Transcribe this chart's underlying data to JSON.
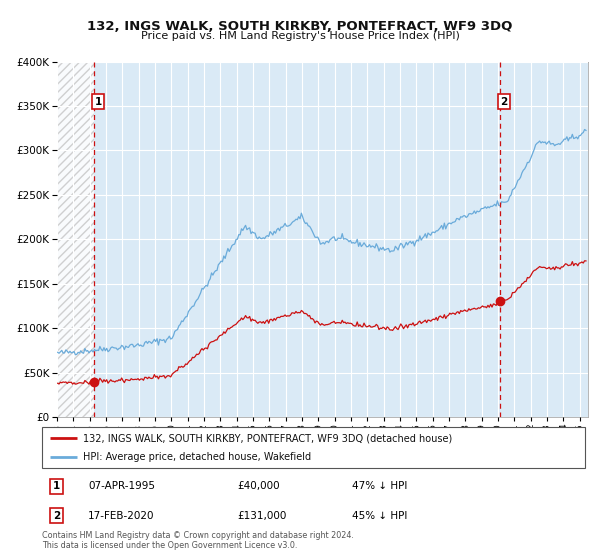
{
  "title": "132, INGS WALK, SOUTH KIRKBY, PONTEFRACT, WF9 3DQ",
  "subtitle": "Price paid vs. HM Land Registry's House Price Index (HPI)",
  "sale1_date": "07-APR-1995",
  "sale1_price": 40000,
  "sale1_label": "47% ↓ HPI",
  "sale1_year": 1995.27,
  "sale2_date": "17-FEB-2020",
  "sale2_price": 131000,
  "sale2_label": "45% ↓ HPI",
  "sale2_year": 2020.12,
  "hpi_color": "#6aabda",
  "price_color": "#cc1111",
  "vline_color": "#cc1111",
  "bg_color": "#daeaf6",
  "grid_color": "#ffffff",
  "hatch_color": "#c8c8c8",
  "legend_label1": "132, INGS WALK, SOUTH KIRKBY, PONTEFRACT, WF9 3DQ (detached house)",
  "legend_label2": "HPI: Average price, detached house, Wakefield",
  "footer": "Contains HM Land Registry data © Crown copyright and database right 2024.\nThis data is licensed under the Open Government Licence v3.0.",
  "ylim_max": 400000,
  "xmin": 1993.0,
  "xmax": 2025.5
}
